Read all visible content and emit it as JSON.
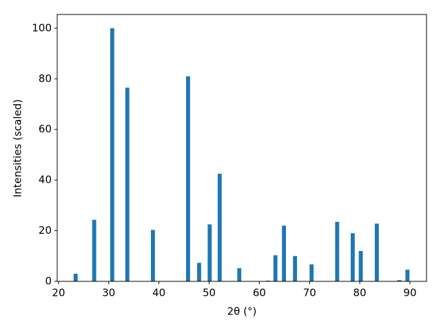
{
  "chart_data": {
    "type": "bar",
    "x": [
      23.4,
      27.1,
      30.7,
      33.7,
      38.8,
      45.8,
      48.0,
      50.1,
      52.1,
      56.0,
      61.7,
      63.2,
      64.9,
      67.1,
      70.4,
      75.5,
      78.6,
      80.2,
      83.4,
      87.9,
      89.5
    ],
    "values": [
      3,
      24.3,
      100,
      76.5,
      20.3,
      81,
      7.3,
      22.5,
      42.5,
      5.2,
      0.3,
      10.3,
      22,
      10,
      6.7,
      23.5,
      19,
      12,
      22.8,
      0.5,
      4.6
    ],
    "bar_width": 0.8,
    "color": "#1f77b4",
    "xlabel": "2θ (°)",
    "ylabel": "Intensities (scaled)",
    "xlim": [
      19.73,
      93.3
    ],
    "xticks": [
      20,
      30,
      40,
      50,
      60,
      70,
      80,
      90
    ],
    "ylim": [
      0,
      105.4
    ],
    "yticks": [
      0,
      20,
      40,
      60,
      80,
      100
    ],
    "grid": false
  }
}
